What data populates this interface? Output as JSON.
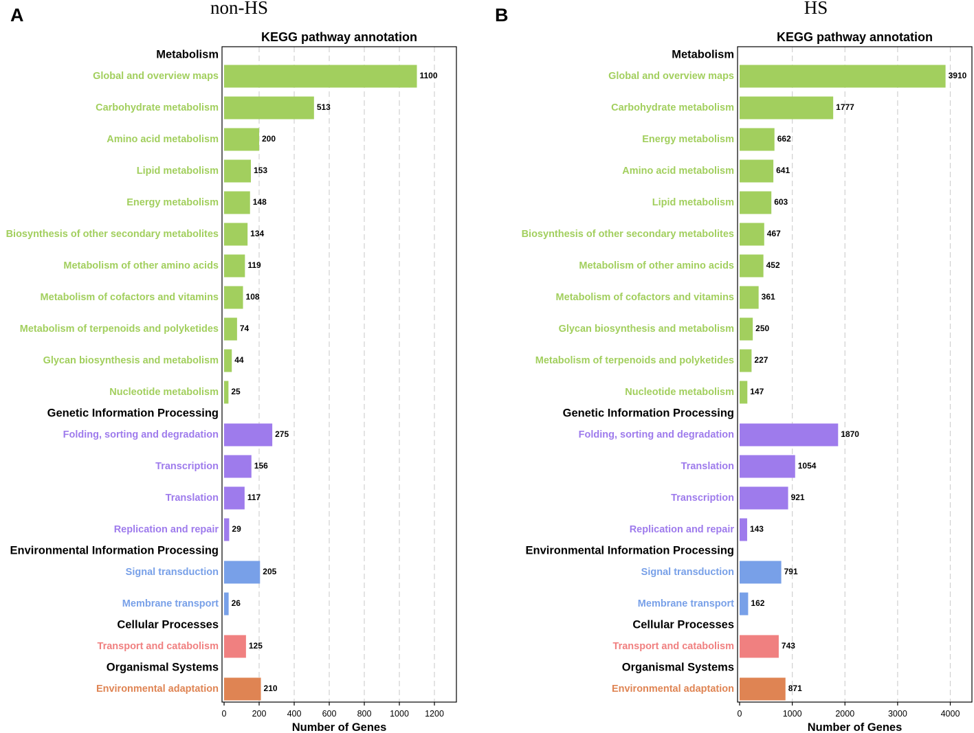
{
  "colors": {
    "Metabolism": "#a2cf5e",
    "Genetic Information Processing": "#9e7bec",
    "Environmental Information Processing": "#78a0e8",
    "Cellular Processes": "#f08080",
    "Organismal Systems": "#df8453"
  },
  "chart_data": [
    {
      "type": "bar",
      "orientation": "horizontal",
      "panel": "A",
      "panel_title": "non-HS",
      "title": "KEGG pathway annotation",
      "xlabel": "Number of Genes",
      "xlim": [
        0,
        1330
      ],
      "xticks": [
        0,
        200,
        400,
        600,
        800,
        1000,
        1200
      ],
      "grid": "vertical dashed",
      "groups": [
        {
          "name": "Metabolism",
          "items": [
            {
              "label": "Global and overview maps",
              "value": 1100
            },
            {
              "label": "Carbohydrate metabolism",
              "value": 513
            },
            {
              "label": "Amino acid metabolism",
              "value": 200
            },
            {
              "label": "Lipid metabolism",
              "value": 153
            },
            {
              "label": "Energy metabolism",
              "value": 148
            },
            {
              "label": "Biosynthesis of other secondary metabolites",
              "value": 134
            },
            {
              "label": "Metabolism of other amino acids",
              "value": 119
            },
            {
              "label": "Metabolism of cofactors and vitamins",
              "value": 108
            },
            {
              "label": "Metabolism of terpenoids and polyketides",
              "value": 74
            },
            {
              "label": "Glycan biosynthesis and metabolism",
              "value": 44
            },
            {
              "label": "Nucleotide metabolism",
              "value": 25
            }
          ]
        },
        {
          "name": "Genetic Information Processing",
          "items": [
            {
              "label": "Folding, sorting and degradation",
              "value": 275
            },
            {
              "label": "Transcription",
              "value": 156
            },
            {
              "label": "Translation",
              "value": 117
            },
            {
              "label": "Replication and repair",
              "value": 29
            }
          ]
        },
        {
          "name": "Environmental Information Processing",
          "items": [
            {
              "label": "Signal transduction",
              "value": 205
            },
            {
              "label": "Membrane transport",
              "value": 26
            }
          ]
        },
        {
          "name": "Cellular Processes",
          "items": [
            {
              "label": "Transport and catabolism",
              "value": 125
            }
          ]
        },
        {
          "name": "Organismal Systems",
          "items": [
            {
              "label": "Environmental adaptation",
              "value": 210
            }
          ]
        }
      ]
    },
    {
      "type": "bar",
      "orientation": "horizontal",
      "panel": "B",
      "panel_title": "HS",
      "title": "KEGG pathway annotation",
      "xlabel": "Number of Genes",
      "xlim": [
        0,
        4390
      ],
      "xticks": [
        0,
        1000,
        2000,
        3000,
        4000
      ],
      "grid": "vertical dashed",
      "groups": [
        {
          "name": "Metabolism",
          "items": [
            {
              "label": "Global and overview maps",
              "value": 3910
            },
            {
              "label": "Carbohydrate metabolism",
              "value": 1777
            },
            {
              "label": "Energy metabolism",
              "value": 662
            },
            {
              "label": "Amino acid metabolism",
              "value": 641
            },
            {
              "label": "Lipid metabolism",
              "value": 603
            },
            {
              "label": "Biosynthesis of other secondary metabolites",
              "value": 467
            },
            {
              "label": "Metabolism of other amino acids",
              "value": 452
            },
            {
              "label": "Metabolism of cofactors and vitamins",
              "value": 361
            },
            {
              "label": "Glycan biosynthesis and metabolism",
              "value": 250
            },
            {
              "label": "Metabolism of terpenoids and polyketides",
              "value": 227
            },
            {
              "label": "Nucleotide metabolism",
              "value": 147
            }
          ]
        },
        {
          "name": "Genetic Information Processing",
          "items": [
            {
              "label": "Folding, sorting and degradation",
              "value": 1870
            },
            {
              "label": "Translation",
              "value": 1054
            },
            {
              "label": "Transcription",
              "value": 921
            },
            {
              "label": "Replication and repair",
              "value": 143
            }
          ]
        },
        {
          "name": "Environmental Information Processing",
          "items": [
            {
              "label": "Signal transduction",
              "value": 791
            },
            {
              "label": "Membrane transport",
              "value": 162
            }
          ]
        },
        {
          "name": "Cellular Processes",
          "items": [
            {
              "label": "Transport and catabolism",
              "value": 743
            }
          ]
        },
        {
          "name": "Organismal Systems",
          "items": [
            {
              "label": "Environmental adaptation",
              "value": 871
            }
          ]
        }
      ]
    }
  ]
}
